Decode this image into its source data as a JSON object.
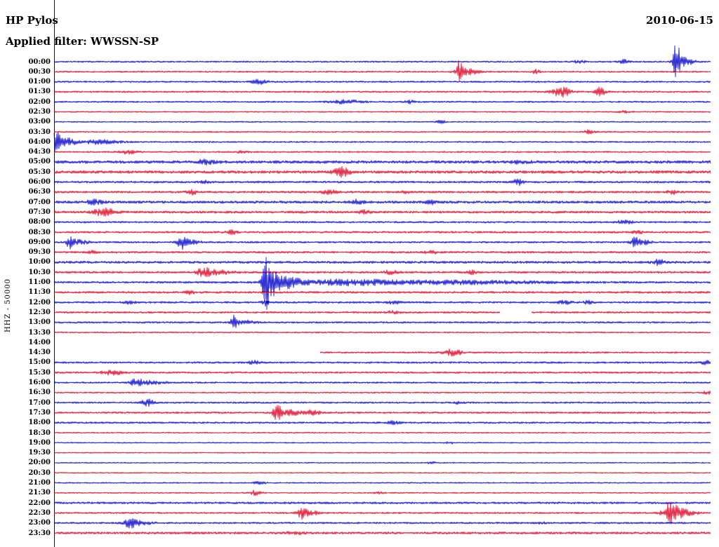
{
  "header": {
    "station": "HP Pylos",
    "filter_line": "Applied filter: WWSSN-SP",
    "date": "2010-06-15"
  },
  "y_axis_label": "HHZ - 50000",
  "colors": {
    "blue": "#0000cc",
    "red": "#dd0022",
    "text": "#000000",
    "background": "#ffffff"
  },
  "chart_data": {
    "type": "line",
    "subtype": "helicorder-seismogram",
    "title": "HP Pylos",
    "date": "2010-06-15",
    "filter": "WWSSN-SP",
    "channel": "HHZ",
    "scale": "50000",
    "minutes_per_line": 30,
    "x_axis": {
      "unit": "minutes",
      "range": [
        0,
        30
      ]
    },
    "encoding": "rows: t=line start time, c=trace color (b=blue, r=red), n=background noise half-amplitude px, ev=[position fraction 0-1, burst half-amplitude px, burst width px], seg=drawn spans as fraction ranges (absent = full line; empty = blank line)",
    "rows": [
      {
        "t": "00:00",
        "c": "b",
        "n": 1.2,
        "ev": [
          [
            0.8,
            2,
            6
          ],
          [
            0.867,
            3,
            5
          ],
          [
            0.948,
            28,
            3
          ],
          [
            0.958,
            6,
            10
          ]
        ]
      },
      {
        "t": "00:30",
        "c": "r",
        "n": 1.2,
        "ev": [
          [
            0.618,
            16,
            3
          ],
          [
            0.63,
            4,
            12
          ],
          [
            0.734,
            3,
            4
          ]
        ]
      },
      {
        "t": "01:00",
        "c": "b",
        "n": 1.3,
        "ev": [
          [
            0.313,
            3,
            8
          ]
        ]
      },
      {
        "t": "01:30",
        "c": "r",
        "n": 1.3,
        "ev": [
          [
            0.773,
            7,
            9
          ],
          [
            0.832,
            6,
            5
          ]
        ]
      },
      {
        "t": "02:00",
        "c": "b",
        "n": 1.2,
        "ev": [
          [
            0.444,
            2.5,
            16
          ],
          [
            0.543,
            2,
            6
          ]
        ]
      },
      {
        "t": "02:30",
        "c": "r",
        "n": 1.0,
        "ev": [
          [
            0.869,
            2,
            6
          ]
        ]
      },
      {
        "t": "03:00",
        "c": "b",
        "n": 1.0,
        "ev": [
          [
            0.589,
            2,
            5
          ]
        ]
      },
      {
        "t": "03:30",
        "c": "r",
        "n": 1.1,
        "ev": [
          [
            0.814,
            2.5,
            6
          ]
        ]
      },
      {
        "t": "04:00",
        "c": "b",
        "n": 1.2,
        "ev": [
          [
            0.004,
            18,
            4
          ],
          [
            0.02,
            6,
            8
          ],
          [
            0.07,
            3,
            20
          ]
        ]
      },
      {
        "t": "04:30",
        "c": "r",
        "n": 1.2,
        "ev": [
          [
            0.112,
            3,
            8
          ],
          [
            0.287,
            2,
            5
          ]
        ]
      },
      {
        "t": "05:00",
        "c": "b",
        "n": 2.2,
        "ev": [
          [
            0.231,
            3,
            10
          ],
          [
            0.709,
            2.5,
            8
          ]
        ]
      },
      {
        "t": "05:30",
        "c": "r",
        "n": 2.2,
        "ev": [
          [
            0.438,
            7,
            7
          ]
        ]
      },
      {
        "t": "06:00",
        "c": "b",
        "n": 1.6,
        "ev": [
          [
            0.231,
            2,
            6
          ],
          [
            0.707,
            4,
            5
          ]
        ]
      },
      {
        "t": "06:30",
        "c": "r",
        "n": 1.6,
        "ev": [
          [
            0.21,
            3,
            6
          ],
          [
            0.42,
            2.5,
            8
          ],
          [
            0.538,
            2.5,
            6
          ],
          [
            0.941,
            3,
            5
          ]
        ]
      },
      {
        "t": "07:00",
        "c": "b",
        "n": 2.0,
        "ev": [
          [
            0.062,
            3,
            8
          ],
          [
            0.461,
            3,
            7
          ],
          [
            0.573,
            2.5,
            6
          ]
        ]
      },
      {
        "t": "07:30",
        "c": "r",
        "n": 1.8,
        "ev": [
          [
            0.076,
            5,
            11
          ],
          [
            0.471,
            2.5,
            6
          ]
        ]
      },
      {
        "t": "08:00",
        "c": "b",
        "n": 1.4,
        "ev": [
          [
            0.869,
            2.5,
            8
          ]
        ]
      },
      {
        "t": "08:30",
        "c": "r",
        "n": 1.5,
        "ev": [
          [
            0.271,
            2.5,
            6
          ],
          [
            0.889,
            2,
            5
          ]
        ]
      },
      {
        "t": "09:00",
        "c": "b",
        "n": 1.4,
        "ev": [
          [
            0.025,
            9,
            4
          ],
          [
            0.04,
            3,
            8
          ],
          [
            0.194,
            9,
            5
          ],
          [
            0.21,
            3,
            8
          ],
          [
            0.885,
            7,
            4
          ],
          [
            0.9,
            3,
            7
          ]
        ]
      },
      {
        "t": "09:30",
        "c": "r",
        "n": 1.5,
        "ev": [
          [
            0.057,
            2,
            5
          ],
          [
            0.575,
            2.5,
            6
          ]
        ]
      },
      {
        "t": "10:00",
        "c": "b",
        "n": 1.8,
        "ev": [
          [
            0.921,
            3.5,
            6
          ]
        ]
      },
      {
        "t": "10:30",
        "c": "r",
        "n": 1.6,
        "ev": [
          [
            0.228,
            7,
            6
          ],
          [
            0.25,
            3,
            14
          ],
          [
            0.513,
            3,
            6
          ],
          [
            0.636,
            2.5,
            5
          ]
        ]
      },
      {
        "t": "11:00",
        "c": "b",
        "n": 1.6,
        "ev": [
          [
            0.322,
            40,
            3
          ],
          [
            0.332,
            18,
            7
          ],
          [
            0.36,
            8,
            14
          ],
          [
            0.45,
            4,
            40
          ],
          [
            0.62,
            2.5,
            80
          ]
        ]
      },
      {
        "t": "11:30",
        "c": "r",
        "n": 1.6,
        "ev": [
          [
            0.206,
            2.5,
            6
          ]
        ]
      },
      {
        "t": "12:00",
        "c": "b",
        "n": 1.5,
        "ev": [
          [
            0.115,
            2.5,
            5
          ],
          [
            0.322,
            5,
            3
          ],
          [
            0.517,
            2,
            6
          ],
          [
            0.778,
            2.5,
            6
          ],
          [
            0.814,
            2.5,
            5
          ]
        ]
      },
      {
        "t": "12:30",
        "c": "r",
        "n": 1.4,
        "seg": [
          [
            0,
            0.679
          ],
          [
            0.727,
            1
          ]
        ],
        "ev": [
          [
            0.517,
            2,
            6
          ]
        ]
      },
      {
        "t": "13:00",
        "c": "b",
        "n": 1.4,
        "ev": [
          [
            0.274,
            10,
            3
          ],
          [
            0.29,
            3,
            10
          ]
        ]
      },
      {
        "t": "13:30",
        "c": "r",
        "n": 1.1,
        "ev": []
      },
      {
        "t": "14:00",
        "c": "b",
        "n": 1.2,
        "seg": [],
        "ev": []
      },
      {
        "t": "14:30",
        "c": "r",
        "n": 1.3,
        "seg": [
          [
            0.405,
            1
          ]
        ],
        "ev": [
          [
            0.607,
            5,
            9
          ]
        ]
      },
      {
        "t": "15:00",
        "c": "b",
        "n": 1.4,
        "ev": [
          [
            0.306,
            3,
            6
          ],
          [
            0.992,
            3,
            4
          ]
        ]
      },
      {
        "t": "15:30",
        "c": "r",
        "n": 1.4,
        "ev": [
          [
            0.089,
            3.5,
            11
          ]
        ]
      },
      {
        "t": "16:00",
        "c": "b",
        "n": 1.3,
        "ev": [
          [
            0.126,
            5,
            7
          ],
          [
            0.15,
            2.5,
            12
          ]
        ]
      },
      {
        "t": "16:30",
        "c": "r",
        "n": 1.1,
        "ev": [
          [
            0.995,
            2.5,
            4
          ]
        ]
      },
      {
        "t": "17:00",
        "c": "b",
        "n": 1.3,
        "ev": [
          [
            0.142,
            5,
            7
          ],
          [
            0.618,
            2,
            5
          ]
        ]
      },
      {
        "t": "17:30",
        "c": "r",
        "n": 1.4,
        "ev": [
          [
            0.34,
            11,
            4
          ],
          [
            0.36,
            4,
            11
          ],
          [
            0.394,
            4,
            7
          ]
        ]
      },
      {
        "t": "18:00",
        "c": "b",
        "n": 1.4,
        "ev": [
          [
            0.517,
            2.5,
            6
          ]
        ]
      },
      {
        "t": "18:30",
        "c": "r",
        "n": 1.0,
        "ev": []
      },
      {
        "t": "19:00",
        "c": "b",
        "n": 0.9,
        "ev": [
          [
            0.602,
            1.5,
            5
          ]
        ]
      },
      {
        "t": "19:30",
        "c": "r",
        "n": 0.9,
        "ev": []
      },
      {
        "t": "20:00",
        "c": "b",
        "n": 0.9,
        "ev": [
          [
            0.575,
            1.5,
            5
          ]
        ]
      },
      {
        "t": "20:30",
        "c": "r",
        "n": 0.9,
        "ev": []
      },
      {
        "t": "21:00",
        "c": "b",
        "n": 1.0,
        "ev": [
          [
            0.313,
            2,
            6
          ]
        ]
      },
      {
        "t": "21:30",
        "c": "r",
        "n": 1.0,
        "ev": [
          [
            0.306,
            3.5,
            6
          ],
          [
            0.495,
            1.5,
            5
          ]
        ]
      },
      {
        "t": "22:00",
        "c": "b",
        "n": 1.6,
        "ev": []
      },
      {
        "t": "22:30",
        "c": "r",
        "n": 1.3,
        "ev": [
          [
            0.378,
            8,
            4
          ],
          [
            0.39,
            3,
            10
          ],
          [
            0.939,
            13,
            7
          ],
          [
            0.955,
            5,
            14
          ]
        ]
      },
      {
        "t": "23:00",
        "c": "b",
        "n": 1.4,
        "ev": [
          [
            0.115,
            5,
            7
          ],
          [
            0.13,
            2.5,
            12
          ],
          [
            0.741,
            2,
            5
          ]
        ]
      },
      {
        "t": "23:30",
        "c": "r",
        "n": 1.8,
        "ev": [
          [
            0.367,
            2,
            8
          ]
        ]
      }
    ]
  }
}
